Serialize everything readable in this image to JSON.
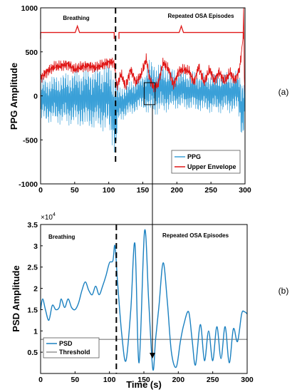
{
  "charts": [
    {
      "panel_label": "(a)",
      "ylabel": "PPG Amplitude",
      "xlabel": "",
      "legend": [
        "PPG",
        "Upper Envelope"
      ],
      "annotations": [
        "Breathing",
        "Repeated OSA Episodes"
      ]
    },
    {
      "panel_label": "(b)",
      "ylabel": "PSD Amplitude",
      "xlabel": "Time (s)",
      "exponent_label": "×10",
      "exponent_power": "4",
      "legend": [
        "PSD",
        "Threshold"
      ],
      "annotations": [
        "Breathing",
        "Repeated OSA Episodes"
      ]
    }
  ],
  "chart_data": [
    {
      "type": "line",
      "x_ticks": [
        "0",
        "50",
        "100",
        "150",
        "200",
        "250",
        "300"
      ],
      "y_ticks": [
        "-1000",
        "-500",
        "0",
        "500",
        "1000"
      ],
      "xlim": [
        0,
        300
      ],
      "ylim": [
        -1000,
        1000
      ],
      "grid": false,
      "legend_position": "bottom-right",
      "colors": {
        "PPG": "#3aa0d8",
        "Upper Envelope": "#e01818",
        "brace": "#e01818"
      },
      "vertical_marker_x": 110,
      "zoom_box": {
        "x": [
          152,
          168
        ],
        "y": [
          -100,
          150
        ]
      },
      "braces": [
        {
          "label": "Breathing",
          "x": [
            0,
            108
          ],
          "y": 720
        },
        {
          "label": "Repeated OSA Episodes",
          "x": [
            115,
            298
          ],
          "y": 720
        }
      ],
      "series": [
        {
          "name": "Upper Envelope",
          "x": [
            0,
            10,
            20,
            30,
            40,
            50,
            60,
            70,
            80,
            90,
            100,
            108,
            112,
            118,
            125,
            132,
            140,
            148,
            155,
            160,
            165,
            172,
            180,
            188,
            195,
            203,
            210,
            218,
            225,
            232,
            240,
            248,
            255,
            262,
            270,
            278,
            285,
            292,
            297,
            298,
            299,
            300
          ],
          "y": [
            200,
            280,
            330,
            340,
            360,
            300,
            330,
            340,
            320,
            350,
            380,
            380,
            100,
            250,
            100,
            300,
            150,
            250,
            420,
            200,
            100,
            120,
            380,
            300,
            120,
            280,
            300,
            280,
            150,
            330,
            150,
            300,
            170,
            270,
            160,
            270,
            170,
            300,
            650,
            1000,
            200,
            0
          ]
        },
        {
          "name": "PPG",
          "x": [
            0,
            50,
            100,
            110,
            115,
            150,
            160,
            200,
            250,
            290,
            296,
            300
          ],
          "y_upper": [
            200,
            300,
            380,
            320,
            100,
            250,
            420,
            300,
            260,
            300,
            250,
            200
          ],
          "y_lower": [
            -300,
            -350,
            -420,
            -720,
            -300,
            -150,
            -250,
            -150,
            -200,
            -200,
            -550,
            -300
          ]
        }
      ]
    },
    {
      "type": "line",
      "x_ticks": [
        "0",
        "50",
        "100",
        "150",
        "200",
        "250",
        "300"
      ],
      "y_ticks": [
        "0.5",
        "1",
        "1.5",
        "2",
        "2.5",
        "3",
        "3.5"
      ],
      "xlim": [
        0,
        300
      ],
      "ylim": [
        0,
        35000
      ],
      "grid": false,
      "legend_position": "bottom-left",
      "colors": {
        "PSD": "#1a80c0",
        "Threshold": "#7a7a7a"
      },
      "vertical_marker_x": 110,
      "series": [
        {
          "name": "PSD",
          "x": [
            0,
            3,
            7,
            12,
            17,
            22,
            27,
            30,
            35,
            40,
            45,
            50,
            55,
            60,
            65,
            70,
            75,
            80,
            85,
            90,
            95,
            100,
            105,
            108,
            112,
            118,
            124,
            131,
            137,
            143,
            151,
            157,
            163,
            167,
            172,
            178,
            184,
            190,
            197,
            203,
            208,
            215,
            220,
            225,
            232,
            238,
            244,
            250,
            256,
            262,
            268,
            274,
            280,
            286,
            292,
            296,
            300
          ],
          "y": [
            15000,
            17500,
            15000,
            12500,
            16000,
            15000,
            15500,
            17500,
            15500,
            17500,
            15500,
            15000,
            16500,
            19500,
            21500,
            19500,
            18500,
            20500,
            18500,
            20500,
            23000,
            26000,
            26500,
            30000,
            21000,
            9000,
            3000,
            15000,
            30500,
            2500,
            33500,
            17000,
            1000,
            8000,
            16000,
            26000,
            17000,
            5000,
            1500,
            7500,
            11500,
            14500,
            8000,
            2000,
            11500,
            3000,
            10000,
            3000,
            11000,
            3500,
            11000,
            2500,
            10500,
            7500,
            14000,
            14500,
            14000
          ]
        },
        {
          "name": "Threshold",
          "x": [
            0,
            300
          ],
          "y": [
            8000,
            8000
          ]
        }
      ]
    }
  ]
}
